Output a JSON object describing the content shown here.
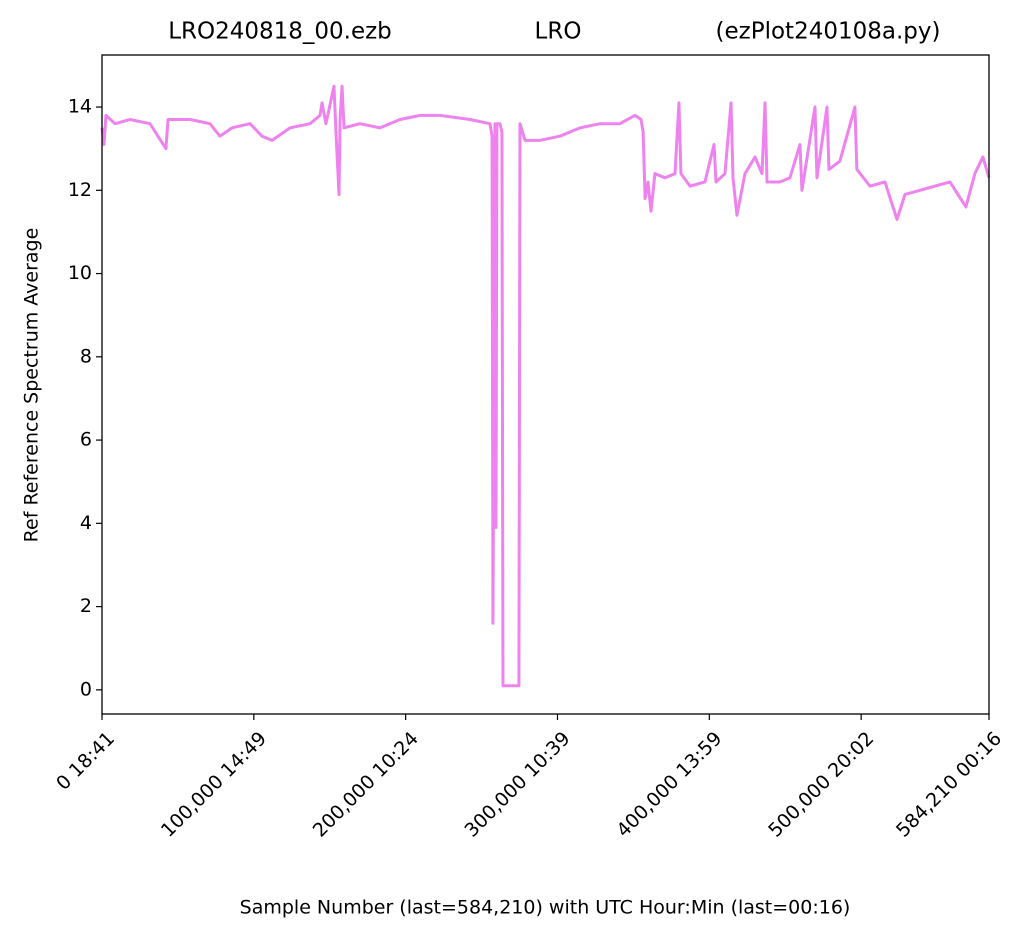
{
  "chart_data": {
    "type": "line",
    "title": [
      "LRO240818_00.ezb",
      "LRO",
      "(ezPlot240108a.py)"
    ],
    "xlabel": "Sample Number (last=584,210) with UTC Hour:Min (last=00:16)",
    "ylabel": "Ref Reference Spectrum Average",
    "x": [
      0,
      1300,
      2600,
      8600,
      18400,
      31600,
      42100,
      43500,
      58000,
      71100,
      77700,
      85600,
      97500,
      105400,
      112000,
      123800,
      137000,
      143600,
      144900,
      147500,
      152800,
      154100,
      156100,
      156800,
      158100,
      159400,
      169900,
      183100,
      196300,
      209500,
      222600,
      242400,
      255500,
      256900,
      257500,
      258800,
      259500,
      260100,
      262100,
      263400,
      264100,
      274600,
      275300,
      278600,
      288500,
      301600,
      314800,
      328000,
      341100,
      351100,
      355000,
      356400,
      357700,
      359600,
      361600,
      364200,
      370800,
      377400,
      380000,
      381300,
      387300,
      397100,
      403100,
      404400,
      410300,
      414300,
      415600,
      418200,
      423500,
      430100,
      434700,
      436700,
      438000,
      446500,
      453100,
      459700,
      461000,
      469600,
      470900,
      477500,
      478800,
      486000,
      495900,
      497200,
      505800,
      515700,
      523600,
      528900,
      538700,
      548600,
      558500,
      569000,
      574900,
      580200,
      584210
    ],
    "series": [
      {
        "name": "Ref",
        "color": "#ee82ee",
        "values": [
          13.5,
          13.1,
          13.8,
          13.6,
          13.7,
          13.6,
          13.0,
          13.7,
          13.7,
          13.6,
          13.3,
          13.5,
          13.6,
          13.3,
          13.2,
          13.5,
          13.6,
          13.8,
          14.1,
          13.6,
          14.5,
          13.4,
          11.9,
          13.7,
          14.5,
          13.5,
          13.6,
          13.5,
          13.7,
          13.8,
          13.8,
          13.7,
          13.6,
          13.3,
          1.6,
          13.6,
          3.9,
          13.6,
          13.6,
          13.4,
          0.1,
          0.1,
          13.6,
          13.2,
          13.2,
          13.3,
          13.5,
          13.6,
          13.6,
          13.8,
          13.7,
          13.4,
          11.8,
          12.2,
          11.5,
          12.4,
          12.3,
          12.4,
          14.1,
          12.4,
          12.1,
          12.2,
          13.1,
          12.2,
          12.4,
          14.1,
          12.3,
          11.4,
          12.4,
          12.8,
          12.4,
          14.1,
          12.2,
          12.2,
          12.3,
          13.1,
          12.0,
          14.0,
          12.3,
          14.0,
          12.5,
          12.7,
          14.0,
          12.5,
          12.1,
          12.2,
          11.3,
          11.9,
          12.0,
          12.1,
          12.2,
          11.6,
          12.4,
          12.8,
          12.3
        ]
      }
    ],
    "xlim": [
      0,
      584210
    ],
    "ylim": [
      -0.58,
      15.25
    ],
    "xticks": [
      {
        "value": 0,
        "label": "0  18:41"
      },
      {
        "value": 100000,
        "label": "100,000  14:49"
      },
      {
        "value": 200000,
        "label": "200,000  10:24"
      },
      {
        "value": 300000,
        "label": "300,000  10:39"
      },
      {
        "value": 400000,
        "label": "400,000  13:59"
      },
      {
        "value": 500000,
        "label": "500,000  20:02"
      },
      {
        "value": 584210,
        "label": "584,210  00:16"
      }
    ],
    "yticks": [
      0,
      2,
      4,
      6,
      8,
      10,
      12,
      14
    ],
    "grid": false
  }
}
